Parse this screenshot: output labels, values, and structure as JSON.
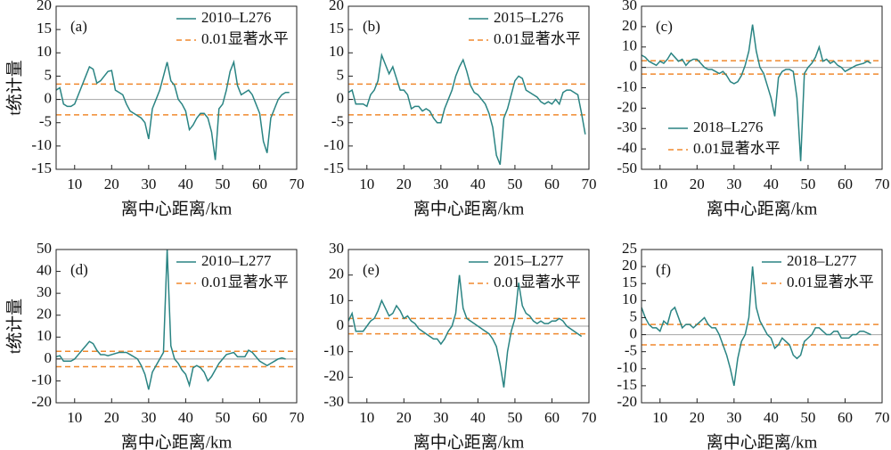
{
  "chart_data": [
    {
      "type": "line",
      "label": "(a)",
      "xlabel": "离中心距离/km",
      "ylabel": "t统计量",
      "legend": "upper right",
      "xlim": [
        5,
        70
      ],
      "xticks": [
        10,
        20,
        30,
        40,
        50,
        60,
        70
      ],
      "ylim": [
        -15,
        20
      ],
      "yticks": [
        -15,
        -10,
        -5,
        0,
        5,
        10,
        15,
        20
      ],
      "zero_line": 0,
      "threshold": {
        "name": "0.01显著水平",
        "color": "#f0892e",
        "values": [
          3.3,
          -3.3
        ]
      },
      "series": [
        {
          "name": "2010–L276",
          "color": "#2a8483",
          "x": [
            5,
            6,
            7,
            8,
            9,
            10,
            11,
            12,
            13,
            14,
            15,
            16,
            17,
            18,
            19,
            20,
            21,
            22,
            23,
            24,
            25,
            26,
            27,
            28,
            29,
            30,
            31,
            32,
            33,
            34,
            35,
            36,
            37,
            38,
            39,
            40,
            41,
            42,
            43,
            44,
            45,
            46,
            47,
            48,
            49,
            50,
            51,
            52,
            53,
            54,
            55,
            56,
            57,
            58,
            59,
            60,
            61,
            62,
            63,
            64,
            65,
            66,
            67,
            68
          ],
          "values": [
            2,
            2.5,
            -1,
            -1.5,
            -1.5,
            -1,
            1,
            3,
            5,
            7,
            6.5,
            3.5,
            4,
            5,
            6,
            6.2,
            2,
            1.5,
            1,
            -1,
            -2.5,
            -3,
            -3.5,
            -4,
            -5,
            -8.5,
            -2,
            0,
            2,
            5,
            8,
            4,
            3,
            0,
            -1,
            -2.5,
            -6.5,
            -5.5,
            -4,
            -3,
            -3,
            -4,
            -7,
            -13,
            -2,
            -1,
            2,
            6,
            8,
            3,
            1,
            1.5,
            2,
            1,
            -1,
            -3,
            -9,
            -11.5,
            -4,
            -2,
            0,
            1,
            1.5,
            1.5
          ]
        }
      ]
    },
    {
      "type": "line",
      "label": "(b)",
      "xlabel": "离中心距离/km",
      "legend": "upper right",
      "xlim": [
        5,
        70
      ],
      "xticks": [
        10,
        20,
        30,
        40,
        50,
        60,
        70
      ],
      "ylim": [
        -15,
        20
      ],
      "yticks": [
        -15,
        -10,
        -5,
        0,
        5,
        10,
        15,
        20
      ],
      "zero_line": 0,
      "threshold": {
        "name": "0.01显著水平",
        "color": "#f0892e",
        "values": [
          3.3,
          -3.3
        ]
      },
      "series": [
        {
          "name": "2015–L276",
          "color": "#2a8483",
          "x": [
            5,
            6,
            7,
            8,
            9,
            10,
            11,
            12,
            13,
            14,
            15,
            16,
            17,
            18,
            19,
            20,
            21,
            22,
            23,
            24,
            25,
            26,
            27,
            28,
            29,
            30,
            31,
            32,
            33,
            34,
            35,
            36,
            37,
            38,
            39,
            40,
            41,
            42,
            43,
            44,
            45,
            46,
            47,
            48,
            49,
            50,
            51,
            52,
            53,
            54,
            55,
            56,
            57,
            58,
            59,
            60,
            61,
            62,
            63,
            64,
            65,
            66,
            67,
            68,
            69
          ],
          "values": [
            1.5,
            2,
            -1,
            -1,
            -1,
            -1.5,
            1,
            2,
            4,
            9.5,
            7.5,
            5.5,
            7,
            4.5,
            2,
            2,
            1,
            -2,
            -1.5,
            -1.5,
            -2.5,
            -2,
            -2.5,
            -4,
            -5,
            -5,
            -2,
            0,
            2,
            5,
            7,
            8.5,
            6,
            3,
            1.5,
            1,
            0,
            -1,
            -3,
            -6,
            -12,
            -14,
            -4,
            -2,
            1,
            4,
            5,
            4.5,
            2,
            1.5,
            1,
            0.5,
            -0.5,
            -1,
            -0.5,
            -1,
            0,
            -1,
            1.5,
            2,
            2,
            1.5,
            1,
            -3,
            -7.5
          ]
        }
      ]
    },
    {
      "type": "line",
      "label": "(c)",
      "xlabel": "离中心距离/km",
      "legend": "lower left",
      "xlim": [
        5,
        70
      ],
      "xticks": [
        10,
        20,
        30,
        40,
        50,
        60,
        70
      ],
      "ylim": [
        -50,
        30
      ],
      "yticks": [
        -50,
        -40,
        -30,
        -20,
        -10,
        0,
        10,
        20,
        30
      ],
      "zero_line": 0,
      "threshold": {
        "name": "0.01显著水平",
        "color": "#f0892e",
        "values": [
          3.3,
          -3.3
        ]
      },
      "series": [
        {
          "name": "2018–L276",
          "color": "#2a8483",
          "x": [
            5,
            6,
            7,
            8,
            9,
            10,
            11,
            12,
            13,
            14,
            15,
            16,
            17,
            18,
            19,
            20,
            21,
            22,
            23,
            24,
            25,
            26,
            27,
            28,
            29,
            30,
            31,
            32,
            33,
            34,
            35,
            36,
            37,
            38,
            39,
            40,
            41,
            42,
            43,
            44,
            45,
            46,
            47,
            48,
            49,
            50,
            51,
            52,
            53,
            54,
            55,
            56,
            57,
            58,
            59,
            60,
            61,
            62,
            63,
            64,
            65,
            66,
            67
          ],
          "values": [
            6,
            5,
            3,
            2,
            1,
            3,
            2,
            4,
            7,
            5,
            3,
            4,
            1,
            3,
            4,
            4,
            2,
            0,
            -1,
            -1,
            -2,
            -3,
            -2,
            -4,
            -7,
            -8,
            -7,
            -4,
            1,
            8,
            21,
            8,
            0,
            -3,
            -9,
            -15,
            -24,
            -5,
            -2,
            -1,
            -1,
            -2,
            -15,
            -46,
            -3,
            0,
            2,
            5,
            10,
            3,
            4,
            2,
            3,
            1,
            0,
            -2,
            -1,
            0,
            1,
            1.5,
            2,
            3,
            2
          ]
        }
      ]
    },
    {
      "type": "line",
      "label": "(d)",
      "xlabel": "离中心距离/km",
      "ylabel": "t统计量",
      "legend": "upper right",
      "xlim": [
        5,
        70
      ],
      "xticks": [
        10,
        20,
        30,
        40,
        50,
        60,
        70
      ],
      "ylim": [
        -20,
        50
      ],
      "yticks": [
        -20,
        -10,
        0,
        10,
        20,
        30,
        40,
        50
      ],
      "zero_line": 0,
      "threshold": {
        "name": "0.01显著水平",
        "color": "#f0892e",
        "values": [
          3.5,
          -3.5
        ]
      },
      "series": [
        {
          "name": "2010–L277",
          "color": "#2a8483",
          "x": [
            5,
            6,
            7,
            8,
            9,
            10,
            11,
            12,
            13,
            14,
            15,
            16,
            17,
            18,
            19,
            20,
            21,
            22,
            23,
            24,
            25,
            26,
            27,
            28,
            29,
            30,
            31,
            32,
            33,
            34,
            35,
            36,
            37,
            38,
            39,
            40,
            41,
            42,
            43,
            44,
            45,
            46,
            47,
            48,
            49,
            50,
            51,
            52,
            53,
            54,
            55,
            56,
            57,
            58,
            59,
            60,
            61,
            62,
            63,
            64,
            65,
            66,
            67
          ],
          "values": [
            1,
            1.5,
            -1,
            -1,
            -1,
            0,
            2,
            4,
            6,
            8,
            7,
            4,
            2,
            2,
            1.5,
            2,
            2.5,
            3,
            3,
            3,
            2,
            1,
            0,
            -3,
            -7,
            -14,
            -6,
            -3,
            0,
            3,
            50,
            6,
            0,
            -2,
            -5,
            -7,
            -12,
            -4,
            -3,
            -4,
            -6,
            -10,
            -8,
            -5,
            -2,
            0,
            2,
            2.5,
            3,
            1,
            1,
            1,
            4,
            3,
            1,
            -1,
            -2,
            -3,
            -2,
            -1,
            0,
            0.5,
            0
          ]
        }
      ]
    },
    {
      "type": "line",
      "label": "(e)",
      "xlabel": "离中心距离/km",
      "legend": "upper right",
      "xlim": [
        5,
        70
      ],
      "xticks": [
        10,
        20,
        30,
        40,
        50,
        60,
        70
      ],
      "ylim": [
        -30,
        30
      ],
      "yticks": [
        -30,
        -20,
        -10,
        0,
        10,
        20,
        30
      ],
      "zero_line": 0,
      "threshold": {
        "name": "0.01显著水平",
        "color": "#f0892e",
        "values": [
          3,
          -3
        ]
      },
      "series": [
        {
          "name": "2015–L277",
          "color": "#2a8483",
          "x": [
            5,
            6,
            7,
            8,
            9,
            10,
            11,
            12,
            13,
            14,
            15,
            16,
            17,
            18,
            19,
            20,
            21,
            22,
            23,
            24,
            25,
            26,
            27,
            28,
            29,
            30,
            31,
            32,
            33,
            34,
            35,
            36,
            37,
            38,
            39,
            40,
            41,
            42,
            43,
            44,
            45,
            46,
            47,
            48,
            49,
            50,
            51,
            52,
            53,
            54,
            55,
            56,
            57,
            58,
            59,
            60,
            61,
            62,
            63,
            64,
            65,
            66,
            67,
            68
          ],
          "values": [
            2,
            5,
            -2,
            -2,
            -2,
            0,
            2,
            3,
            6,
            10,
            7,
            4,
            5,
            8,
            6,
            3,
            4,
            2,
            1,
            -1,
            -2,
            -3,
            -4,
            -5,
            -5,
            -7,
            -5,
            -2,
            0,
            5,
            20,
            7,
            3,
            2,
            1,
            0,
            -1,
            -2,
            -3,
            -5,
            -8,
            -15,
            -24,
            -10,
            -2,
            3,
            17,
            8,
            5,
            4,
            2,
            1,
            2,
            1,
            1,
            2,
            2,
            3,
            2,
            0,
            -1,
            -2,
            -3,
            -4
          ]
        }
      ]
    },
    {
      "type": "line",
      "label": "(f)",
      "xlabel": "离中心距离/km",
      "legend": "upper right",
      "xlim": [
        5,
        70
      ],
      "xticks": [
        10,
        20,
        30,
        40,
        50,
        60,
        70
      ],
      "ylim": [
        -20,
        25
      ],
      "yticks": [
        -20,
        -15,
        -10,
        -5,
        0,
        5,
        10,
        15,
        20,
        25
      ],
      "zero_line": 0,
      "threshold": {
        "name": "0.01显著水平",
        "color": "#f0892e",
        "values": [
          3,
          -3
        ]
      },
      "series": [
        {
          "name": "2018–L277",
          "color": "#2a8483",
          "x": [
            5,
            6,
            7,
            8,
            9,
            10,
            11,
            12,
            13,
            14,
            15,
            16,
            17,
            18,
            19,
            20,
            21,
            22,
            23,
            24,
            25,
            26,
            27,
            28,
            29,
            30,
            31,
            32,
            33,
            34,
            35,
            36,
            37,
            38,
            39,
            40,
            41,
            42,
            43,
            44,
            45,
            46,
            47,
            48,
            49,
            50,
            51,
            52,
            53,
            54,
            55,
            56,
            57,
            58,
            59,
            60,
            61,
            62,
            63,
            64,
            65,
            66,
            67
          ],
          "values": [
            8,
            5,
            3,
            2,
            2,
            1,
            4,
            3,
            7,
            8,
            5,
            2,
            3,
            3,
            2,
            3,
            4,
            5,
            3,
            2,
            2,
            0,
            -3,
            -6,
            -10,
            -15,
            -7,
            -2,
            0,
            5,
            20,
            8,
            4,
            2,
            0,
            -1,
            -4,
            -3,
            -1,
            -2,
            -3,
            -6,
            -7,
            -6,
            -2,
            -1,
            0,
            2,
            2,
            1,
            0,
            0,
            1,
            1,
            -1,
            -1,
            -1,
            0,
            0,
            1,
            1,
            0.5,
            0
          ]
        }
      ]
    }
  ]
}
